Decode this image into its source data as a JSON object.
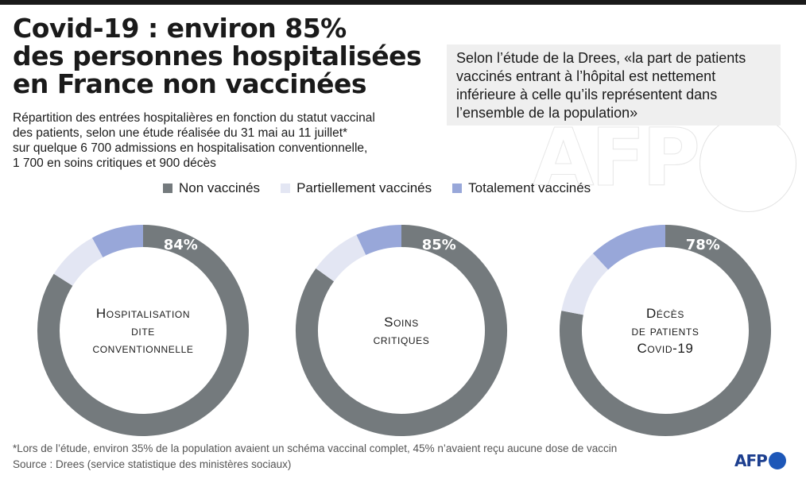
{
  "header": {
    "title_lines": [
      "Covid-19 : environ 85%",
      "des personnes hospitalisées",
      "en France non vaccinées"
    ],
    "subtitle_lines": [
      "Répartition des entrées hospitalières en fonction du statut vaccinal",
      "des patients, selon une étude réalisée du 31 mai au 11 juillet*",
      "sur quelque 6 700 admissions en hospitalisation conventionnelle,",
      "1 700 en soins critiques et 900 décès"
    ]
  },
  "quote": {
    "lines": [
      "Selon l’étude de la Drees, «la part de patients",
      "vaccinés entrant à l’hôpital est nettement",
      "inférieure à celle qu’ils représentent dans",
      "l’ensemble de la population»"
    ]
  },
  "watermark": "AFP",
  "colors": {
    "non_vaccines": "#747a7d",
    "partiellement": "#e3e6f3",
    "totalement": "#98a7d9"
  },
  "legend": [
    {
      "label": "Non vaccinés",
      "color": "#747a7d"
    },
    {
      "label": "Partiellement vaccinés",
      "color": "#e3e6f3"
    },
    {
      "label": "Totalement vaccinés",
      "color": "#98a7d9"
    }
  ],
  "chart_data": [
    {
      "type": "pie",
      "title": "Hospitalisation dite conventionnelle",
      "title_lines": [
        "Hospitalisation",
        "dite",
        "conventionnelle"
      ],
      "categories": [
        "Non vaccinés",
        "Partiellement vaccinés",
        "Totalement vaccinés"
      ],
      "values": [
        84,
        8,
        8
      ],
      "label": "84%"
    },
    {
      "type": "pie",
      "title": "Soins critiques",
      "title_lines": [
        "Soins",
        "critiques"
      ],
      "categories": [
        "Non vaccinés",
        "Partiellement vaccinés",
        "Totalement vaccinés"
      ],
      "values": [
        85,
        8,
        7
      ],
      "label": "85%"
    },
    {
      "type": "pie",
      "title": "Décès de patients Covid-19",
      "title_lines": [
        "Décès",
        "de patients",
        "Covid-19"
      ],
      "categories": [
        "Non vaccinés",
        "Partiellement vaccinés",
        "Totalement vaccinés"
      ],
      "values": [
        78,
        10,
        12
      ],
      "label": "78%"
    }
  ],
  "footnote": {
    "lines": [
      "*Lors de l’étude, environ 35% de la population avaient un schéma vaccinal complet, 45% n’avaient reçu aucune dose de vaccin",
      "Source : Drees (service statistique des ministères sociaux)"
    ]
  },
  "logo": {
    "text": "AFP"
  }
}
